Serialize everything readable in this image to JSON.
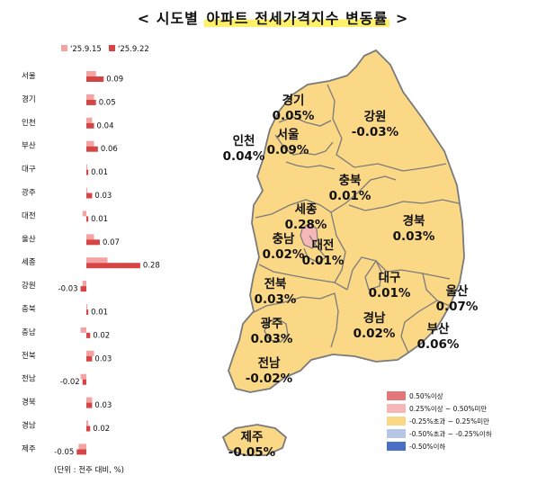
{
  "title": {
    "open": "< 시도별 ",
    "highlight": "아파트 전세가격지수 변동률",
    "close": " >"
  },
  "unit_note": "(단위 : 전주 대비, %)",
  "colors": {
    "prev_week": "#f4a3a3",
    "this_week": "#d64545",
    "map_fill": "#fbd886",
    "map_border": "#7a7a7a",
    "sejong_fill": "#f5b7b7"
  },
  "chart_data": {
    "type": "bar",
    "orientation": "horizontal",
    "categories": [
      "서울",
      "경기",
      "인천",
      "부산",
      "대구",
      "광주",
      "대전",
      "울산",
      "세종",
      "강원",
      "충북",
      "충남",
      "전북",
      "전남",
      "경북",
      "경남",
      "제주"
    ],
    "series": [
      {
        "name": "'25.9.15",
        "values": [
          0.05,
          0.04,
          0.03,
          0.04,
          0.0,
          0.0,
          -0.02,
          0.04,
          0.11,
          -0.02,
          0.0,
          -0.03,
          0.04,
          -0.03,
          0.03,
          0.01,
          -0.04
        ]
      },
      {
        "name": "'25.9.22",
        "values": [
          0.09,
          0.05,
          0.04,
          0.06,
          0.01,
          0.03,
          0.01,
          0.07,
          0.28,
          -0.03,
          0.01,
          0.02,
          0.03,
          -0.02,
          0.03,
          0.02,
          -0.05
        ]
      }
    ],
    "value_labels": [
      "0.09",
      "0.05",
      "0.04",
      "0.06",
      "0.01",
      "0.03",
      "0.01",
      "0.07",
      "0.28",
      "-0.03",
      "0.01",
      "0.02",
      "0.03",
      "-0.02",
      "0.03",
      "0.02",
      "-0.05"
    ],
    "legend_position": "top",
    "grid": false
  },
  "map": {
    "regions": [
      {
        "key": "gyeonggi",
        "name": "경기",
        "value": "0.05%"
      },
      {
        "key": "gangwon",
        "name": "강원",
        "value": "-0.03%"
      },
      {
        "key": "incheon",
        "name": "인천",
        "value": "0.04%"
      },
      {
        "key": "seoul",
        "name": "서울",
        "value": "0.09%"
      },
      {
        "key": "chungbuk",
        "name": "충북",
        "value": "0.01%"
      },
      {
        "key": "sejong",
        "name": "세종",
        "value": "0.28%"
      },
      {
        "key": "gyeongbuk",
        "name": "경북",
        "value": "0.03%"
      },
      {
        "key": "chungnam",
        "name": "충남",
        "value": "0.02%"
      },
      {
        "key": "daejeon",
        "name": "대전",
        "value": "0.01%"
      },
      {
        "key": "jeonbuk",
        "name": "전북",
        "value": "0.03%"
      },
      {
        "key": "daegu",
        "name": "대구",
        "value": "0.01%"
      },
      {
        "key": "ulsan",
        "name": "울산",
        "value": "0.07%"
      },
      {
        "key": "gwangju",
        "name": "광주",
        "value": "0.03%"
      },
      {
        "key": "gyeongnam",
        "name": "경남",
        "value": "0.02%"
      },
      {
        "key": "busan",
        "name": "부산",
        "value": "0.06%"
      },
      {
        "key": "jeonnam",
        "name": "전남",
        "value": "-0.02%"
      },
      {
        "key": "jeju",
        "name": "제주",
        "value": "-0.05%"
      }
    ],
    "legend": [
      {
        "label": "0.50%이상",
        "color": "#e4777a"
      },
      {
        "label": "0.25%이상 ~ 0.50%미만",
        "color": "#f5b7b7"
      },
      {
        "label": "-0.25%초과 ~ 0.25%미만",
        "color": "#fbd886"
      },
      {
        "label": "-0.50%초과 ~ -0.25%이하",
        "color": "#b7c6e6"
      },
      {
        "label": "-0.50%이하",
        "color": "#4a6fc6"
      }
    ]
  }
}
